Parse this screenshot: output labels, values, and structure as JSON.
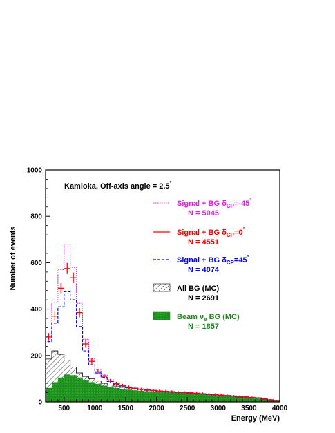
{
  "chart_data": {
    "type": "histogram",
    "xlabel": "Energy (MeV)",
    "ylabel": "Number of events",
    "xlim": [
      200,
      4000
    ],
    "ylim": [
      0,
      1000
    ],
    "x_ticks": [
      "500",
      "1000",
      "1500",
      "2000",
      "2500",
      "3000",
      "3500",
      "4000"
    ],
    "y_ticks": [
      "0",
      "200",
      "400",
      "600",
      "800",
      "1000"
    ],
    "annotation": {
      "text": "Kamioka, Off-axis angle = 2.5",
      "degree": "°"
    },
    "bin_edges": [
      200,
      300,
      400,
      500,
      600,
      700,
      800,
      900,
      1000,
      1100,
      1200,
      1300,
      1400,
      1500,
      1600,
      1700,
      1800,
      1900,
      2000,
      2100,
      2200,
      2300,
      2400,
      2500,
      2600,
      2700,
      2800,
      2900,
      3000,
      3100,
      3200,
      3300,
      3400,
      3500,
      3600,
      3700,
      3800,
      3900,
      4000
    ],
    "series": [
      {
        "key": "sig_m45",
        "label_main": "Signal + BG  δ",
        "label_sub": "CP",
        "label_tail": "=-45",
        "label_deg": "°",
        "count_text": "N =  5045",
        "color": "#e020e0",
        "style": "dotted",
        "values": [
          275,
          430,
          570,
          680,
          580,
          425,
          270,
          185,
          140,
          115,
          95,
          80,
          72,
          65,
          60,
          56,
          52,
          50,
          48,
          46,
          44,
          43,
          42,
          40,
          38,
          36,
          34,
          32,
          30,
          28,
          26,
          24,
          22,
          20,
          18,
          14,
          10,
          7
        ]
      },
      {
        "key": "sig_0",
        "label_main": "Signal + BG  δ",
        "label_sub": "CP",
        "label_tail": "=0",
        "label_deg": "°",
        "count_text": "N =  4551",
        "color": "#ff0000",
        "style": "crosses",
        "values": [
          280,
          370,
          490,
          575,
          535,
          385,
          250,
          175,
          130,
          110,
          90,
          78,
          70,
          63,
          58,
          54,
          51,
          49,
          47,
          45,
          43,
          42,
          41,
          39,
          37,
          35,
          33,
          31,
          29,
          27,
          25,
          23,
          21,
          19,
          17,
          13,
          9,
          6
        ],
        "errors": [
          17,
          19,
          22,
          24,
          23,
          20,
          16,
          13,
          11,
          10,
          9,
          9,
          8,
          8,
          8,
          7,
          7,
          7,
          7,
          7,
          7,
          6,
          6,
          6,
          6,
          6,
          6,
          6,
          5,
          5,
          5,
          5,
          5,
          4,
          4,
          4,
          3,
          3
        ]
      },
      {
        "key": "sig_45",
        "label_main": "Signal + BG  δ",
        "label_sub": "CP",
        "label_tail": "=45",
        "label_deg": "°",
        "count_text": "N = 4074",
        "color": "#0000ff",
        "style": "dashed",
        "values": [
          260,
          340,
          410,
          475,
          440,
          325,
          220,
          160,
          125,
          105,
          88,
          75,
          68,
          62,
          57,
          53,
          50,
          48,
          46,
          44,
          42,
          41,
          40,
          38,
          36,
          34,
          32,
          30,
          28,
          26,
          24,
          22,
          20,
          18,
          16,
          12,
          8,
          6
        ]
      },
      {
        "key": "all_bg",
        "label_main": "All BG  (MC)",
        "count_text": "N =  2691",
        "color": "#000000",
        "style": "hatched",
        "values": [
          185,
          220,
          205,
          180,
          150,
          125,
          110,
          100,
          90,
          80,
          73,
          68,
          63,
          60,
          57,
          54,
          52,
          50,
          48,
          46,
          45,
          43,
          42,
          40,
          38,
          36,
          34,
          32,
          30,
          28,
          26,
          24,
          22,
          19,
          16,
          12,
          9,
          6
        ]
      },
      {
        "key": "beam_ve",
        "label_main": "Beam ν",
        "label_sub": "e",
        "label_tail": " BG (MC)",
        "count_text": "N = 1857",
        "color": "#1a8a1a",
        "style": "filled",
        "values": [
          60,
          85,
          105,
          118,
          115,
          105,
          95,
          85,
          78,
          70,
          65,
          60,
          56,
          53,
          50,
          48,
          46,
          44,
          43,
          42,
          41,
          40,
          39,
          37,
          35,
          33,
          31,
          29,
          27,
          25,
          23,
          21,
          19,
          17,
          14,
          11,
          8,
          5
        ]
      }
    ]
  }
}
